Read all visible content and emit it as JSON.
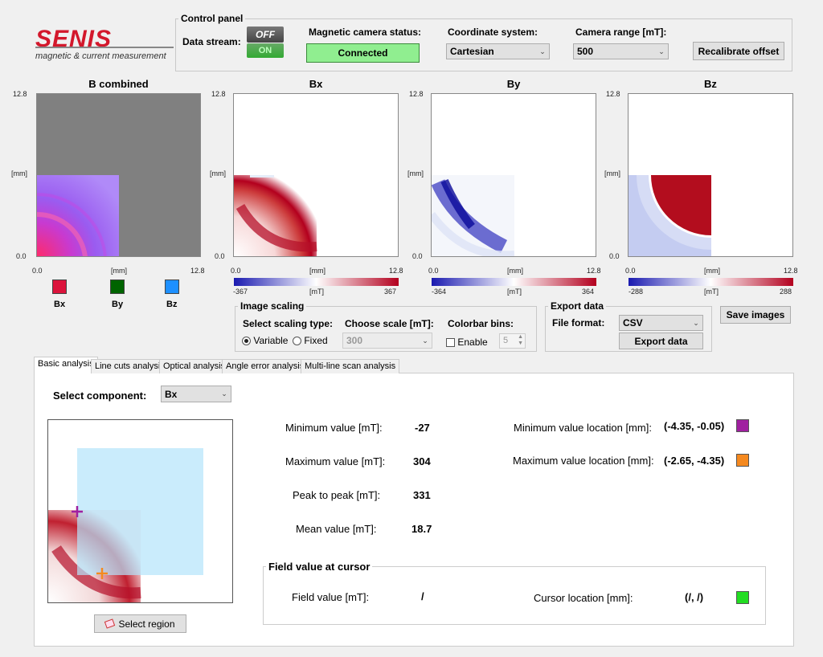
{
  "logo": {
    "brand": "SENIS",
    "tagline": "magnetic & current measurement"
  },
  "control_panel": {
    "title": "Control panel",
    "data_stream_label": "Data stream:",
    "toggle_off": "OFF",
    "toggle_on": "ON",
    "status_label": "Magnetic camera status:",
    "status_value": "Connected",
    "coord_label": "Coordinate system:",
    "coord_value": "Cartesian",
    "range_label": "Camera range [mT]:",
    "range_value": "500",
    "recalibrate": "Recalibrate offset"
  },
  "plots": {
    "combined": {
      "title": "B combined",
      "y_max": "12.8",
      "y_unit": "[mm]",
      "y_min": "0.0",
      "x_min": "0.0",
      "x_unit": "[mm]",
      "x_max": "12.8"
    },
    "bx": {
      "title": "Bx",
      "y_max": "12.8",
      "y_unit": "[mm]",
      "y_min": "0.0",
      "x_min": "0.0",
      "x_unit": "[mm]",
      "x_max": "12.8",
      "cb_min": "-367",
      "cb_unit": "[mT]",
      "cb_max": "367"
    },
    "by": {
      "title": "By",
      "y_max": "12.8",
      "y_unit": "[mm]",
      "y_min": "0.0",
      "x_min": "0.0",
      "x_unit": "[mm]",
      "x_max": "12.8",
      "cb_min": "-364",
      "cb_unit": "[mT]",
      "cb_max": "364"
    },
    "bz": {
      "title": "Bz",
      "y_max": "12.8",
      "y_unit": "[mm]",
      "y_min": "0.0",
      "x_min": "0.0",
      "x_unit": "[mm]",
      "x_max": "12.8",
      "cb_min": "-288",
      "cb_unit": "[mT]",
      "cb_max": "288"
    }
  },
  "legend": {
    "bx": "Bx",
    "by": "By",
    "bz": "Bz",
    "bx_color": "#dc143c",
    "by_color": "#006400",
    "bz_color": "#1e90ff"
  },
  "image_scaling": {
    "title": "Image scaling",
    "scaling_type_label": "Select scaling type:",
    "variable": "Variable",
    "fixed": "Fixed",
    "choose_scale_label": "Choose scale [mT]:",
    "scale_value": "300",
    "bins_label": "Colorbar bins:",
    "enable": "Enable",
    "bins_value": "5"
  },
  "export": {
    "title": "Export data",
    "format_label": "File format:",
    "format_value": "CSV",
    "export_button": "Export data",
    "save_images": "Save images"
  },
  "tabs": [
    "Basic analysis",
    "Line cuts analysis",
    "Optical analysis",
    "Angle error analysis",
    "Multi-line scan analysis"
  ],
  "analysis": {
    "select_component_label": "Select component:",
    "component_value": "Bx",
    "select_region": "Select region",
    "min_label": "Minimum value [mT]:",
    "min_value": "-27",
    "max_label": "Maximum value [mT]:",
    "max_value": "304",
    "p2p_label": "Peak to peak [mT]:",
    "p2p_value": "331",
    "mean_label": "Mean value [mT]:",
    "mean_value": "18.7",
    "min_loc_label": "Minimum value location [mm]:",
    "min_loc_value": "(-4.35, -0.05)",
    "max_loc_label": "Maximum value location [mm]:",
    "max_loc_value": "(-2.65, -4.35)",
    "min_marker_color": "#a020a0",
    "max_marker_color": "#f5891f",
    "cursor_title": "Field value at cursor",
    "field_value_label": "Field value [mT]:",
    "field_value": "/",
    "cursor_loc_label": "Cursor location [mm]:",
    "cursor_loc_value": "(/, /)",
    "cursor_marker_color": "#22dd22"
  }
}
